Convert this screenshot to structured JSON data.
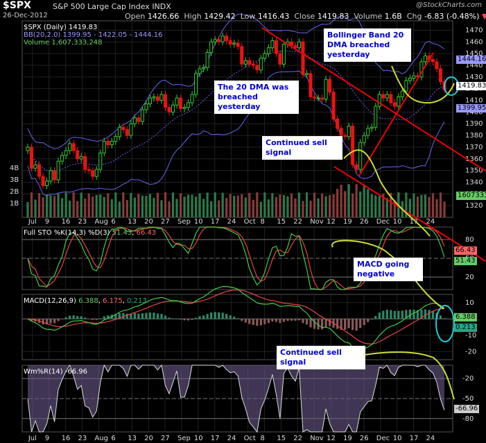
{
  "header": {
    "symbol": "$SPX",
    "name": "S&P 500 Large Cap Index",
    "exchange": "INDX",
    "date": "26-Dec-2012",
    "watermark": "@StockCharts.com",
    "open_label": "Open",
    "open": "1426.66",
    "high_label": "High",
    "high": "1429.42",
    "low_label": "Low",
    "low": "1416.43",
    "close_label": "Close",
    "close": "1419.83",
    "volume_label": "Volume",
    "volume": "1.6B",
    "chg_label": "Chg",
    "chg": "-6.83 (-0.48%)",
    "down_arrow": "▼"
  },
  "legend": {
    "price": "$SPX (Daily) 1419.83",
    "bb": "BB(20,2.0) 1399.95 - 1422.05 - 1444.16",
    "volume": "Volume 1,607,333,248",
    "sto_label": "Full STO %K(14,3) %D(3)",
    "sto_k": "51.43",
    "sto_d": "66.43",
    "macd_label": "MACD(12,26,9)",
    "macd_v1": "6.388",
    "macd_v2": "6.175",
    "macd_v3": "0.213",
    "wmr": "Wm%R(14) -66.96"
  },
  "annotations": {
    "dma": "The 20 DMA was breached yesterday",
    "bb": "Bollinger Band 20 DMA breached yesterday",
    "sell1": "Continued sell signal",
    "macd": "MACD going negative",
    "sell2": "Continued sell signal"
  },
  "value_tags": {
    "bb_upper": "1444.16",
    "close": "1419.83",
    "bb_lower": "1399.95",
    "volume": "1607333",
    "sto_d": "66.43",
    "sto_k": "51.43",
    "macd1": "6.388",
    "macd2": "0.213",
    "wmr": "-66.96"
  },
  "colors": {
    "up": "#3c3",
    "down": "#e11",
    "bb": "#66e",
    "annotation_line": "#cd3",
    "trend_line": "#e00",
    "circle": "#2cd"
  },
  "chart_data": {
    "type": "line",
    "title": "$SPX S&P 500 Large Cap Index INDX",
    "months": [
      {
        "label": "Jul",
        "day": 2
      },
      {
        "label": "9",
        "day": 9
      },
      {
        "label": "16",
        "day": 16
      },
      {
        "label": "23",
        "day": 23
      },
      {
        "label": "Aug",
        "day": 30
      },
      {
        "label": "6",
        "day": 37
      },
      {
        "label": "13",
        "day": 44
      },
      {
        "label": "20",
        "day": 51
      },
      {
        "label": "27",
        "day": 58
      },
      {
        "label": "Sep",
        "day": 65
      },
      {
        "label": "10",
        "day": 72
      },
      {
        "label": "17",
        "day": 79
      },
      {
        "label": "24",
        "day": 86
      },
      {
        "label": "Oct",
        "day": 93
      },
      {
        "label": "8",
        "day": 100
      },
      {
        "label": "15",
        "day": 107
      },
      {
        "label": "22",
        "day": 114
      },
      {
        "label": "Nov",
        "day": 121
      },
      {
        "label": "12",
        "day": 128
      },
      {
        "label": "19",
        "day": 135
      },
      {
        "label": "26",
        "day": 142
      },
      {
        "label": "Dec",
        "day": 149
      },
      {
        "label": "10",
        "day": 156
      },
      {
        "label": "17",
        "day": 163
      },
      {
        "label": "24",
        "day": 170
      }
    ],
    "price_axis": {
      "ticks": [
        1320,
        1330,
        1340,
        1350,
        1360,
        1370,
        1380,
        1390,
        1400,
        1410,
        1420,
        1430,
        1440,
        1450,
        1460,
        1470
      ],
      "ylim": [
        1310,
        1478
      ]
    },
    "volume_axis": {
      "ticks": [
        "1B",
        "2B",
        "3B",
        "4B"
      ]
    },
    "sto_axis": {
      "ticks": [
        80,
        50,
        20
      ],
      "ylim": [
        0,
        100
      ]
    },
    "macd_axis": {
      "ticks": [
        10,
        0,
        -10,
        -20
      ],
      "ylim": [
        -25,
        15
      ]
    },
    "wmr_axis": {
      "ticks": [
        -20,
        -50,
        -80
      ],
      "ylim": [
        -100,
        0
      ]
    },
    "close": [
      1370,
      1352,
      1355,
      1345,
      1337,
      1341,
      1350,
      1342,
      1358,
      1363,
      1367,
      1373,
      1367,
      1360,
      1362,
      1351,
      1350,
      1345,
      1351,
      1365,
      1375,
      1372,
      1375,
      1379,
      1387,
      1385,
      1380,
      1390,
      1395,
      1392,
      1402,
      1407,
      1412,
      1413,
      1410,
      1415,
      1404,
      1400,
      1406,
      1412,
      1403,
      1404,
      1408,
      1415,
      1433,
      1437,
      1438,
      1451,
      1460,
      1462,
      1460,
      1465,
      1461,
      1458,
      1459,
      1456,
      1441,
      1444,
      1441,
      1440,
      1436,
      1446,
      1450,
      1455,
      1461,
      1450,
      1441,
      1458,
      1460,
      1457,
      1455,
      1460,
      1432,
      1433,
      1413,
      1412,
      1412,
      1411,
      1428,
      1417,
      1394,
      1386,
      1380,
      1379,
      1388,
      1355,
      1351,
      1374,
      1380,
      1386,
      1387,
      1405,
      1415,
      1412,
      1415,
      1408,
      1405,
      1413,
      1418,
      1427,
      1429,
      1431,
      1430,
      1443,
      1448,
      1445,
      1443,
      1437,
      1426,
      1419
    ],
    "bb_upper_end": 1444.16,
    "bb_mid_end": 1422.05,
    "bb_lower_end": 1399.95,
    "last": {
      "sto_k": 51.43,
      "sto_d": 66.43,
      "macd": 6.388,
      "signal": 6.175,
      "hist": 0.213,
      "wmr": -66.96
    }
  }
}
